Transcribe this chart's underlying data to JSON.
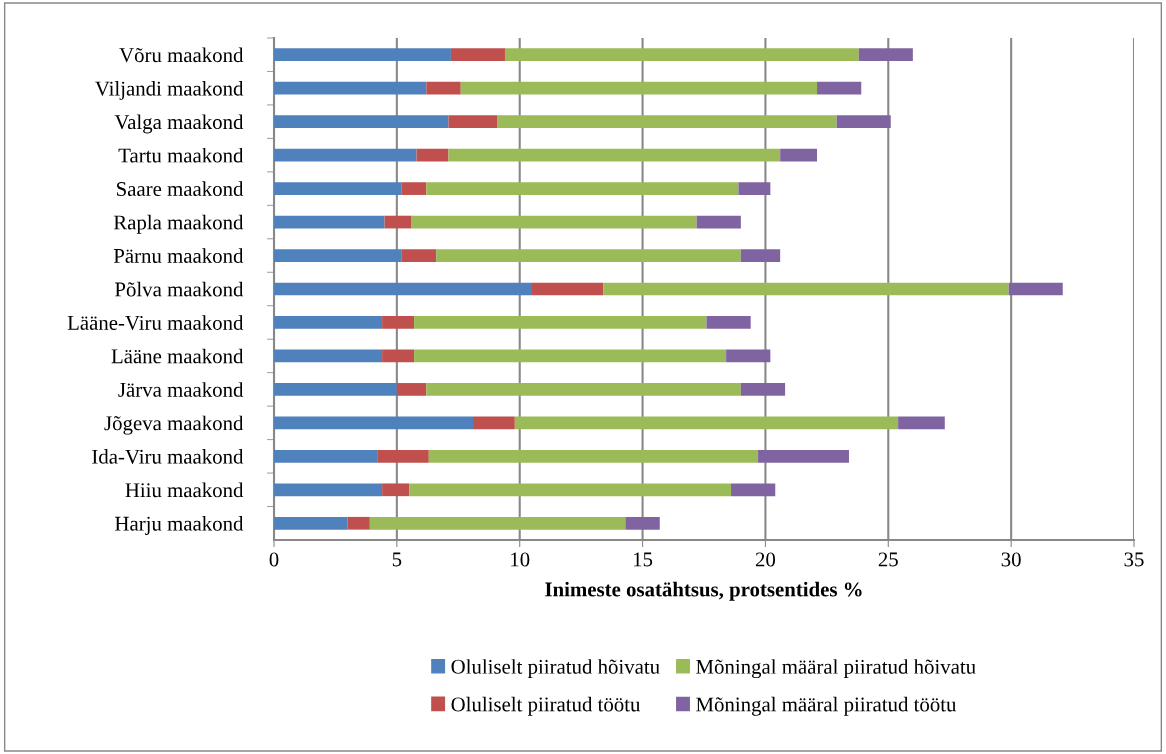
{
  "chart_data": {
    "type": "bar",
    "orientation": "horizontal",
    "stacked": true,
    "xlabel": "Inimeste osatähtsus, protsentides %",
    "categories": [
      "Võru maakond",
      "Viljandi maakond",
      "Valga maakond",
      "Tartu maakond",
      "Saare maakond",
      "Rapla maakond",
      "Pärnu maakond",
      "Põlva maakond",
      "Lääne-Viru maakond",
      "Lääne maakond",
      "Järva maakond",
      "Jõgeva maakond",
      "Ida-Viru maakond",
      "Hiiu maakond",
      "Harju maakond"
    ],
    "series": [
      {
        "name": "Oluliselt piiratud hõivatu",
        "color": "#4f81bd",
        "values": [
          7.2,
          6.2,
          7.1,
          5.8,
          5.2,
          4.5,
          5.2,
          10.5,
          4.4,
          4.4,
          5.0,
          8.1,
          4.2,
          4.4,
          3.0
        ]
      },
      {
        "name": "Oluliselt piiratud töötu",
        "color": "#c0504d",
        "values": [
          2.2,
          1.4,
          2.0,
          1.3,
          1.0,
          1.1,
          1.4,
          2.9,
          1.3,
          1.3,
          1.2,
          1.7,
          2.1,
          1.1,
          0.9
        ]
      },
      {
        "name": "Mõningal määral piiratud hõivatu",
        "color": "#9bbb59",
        "values": [
          14.4,
          14.5,
          13.8,
          13.5,
          12.7,
          11.6,
          12.4,
          16.5,
          11.9,
          12.7,
          12.8,
          15.6,
          13.4,
          13.1,
          10.4
        ]
      },
      {
        "name": "Mõningal määral piiratud töötu",
        "color": "#8064a2",
        "values": [
          2.2,
          1.8,
          2.2,
          1.5,
          1.3,
          1.8,
          1.6,
          2.2,
          1.8,
          1.8,
          1.8,
          1.9,
          3.7,
          1.8,
          1.4
        ]
      }
    ],
    "xlim": [
      0,
      35
    ],
    "xticks": [
      0,
      5,
      10,
      15,
      20,
      25,
      30,
      35
    ],
    "grid": "x",
    "legend": "bottom"
  }
}
